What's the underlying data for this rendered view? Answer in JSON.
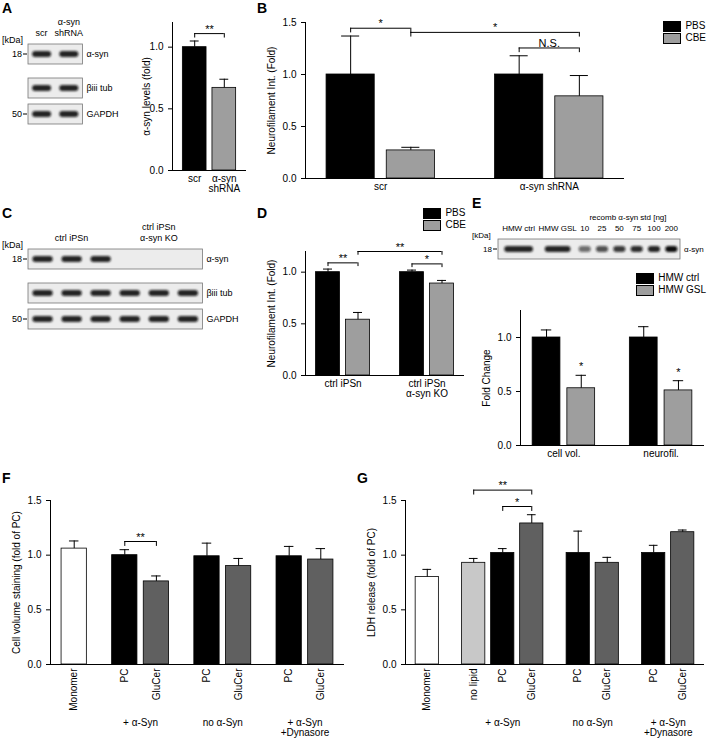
{
  "chart_data": [
    {
      "type": "bar",
      "categories": [
        "scr",
        "α-syn\nshRNA"
      ],
      "values": [
        1.0,
        0.67
      ],
      "errors": [
        0.05,
        0.07
      ],
      "colors": [
        "#000000",
        "#9e9e9e"
      ],
      "ylabel": "α-syn levels (fold)",
      "ylim": [
        0,
        1.2
      ],
      "yticks": [
        {
          "value": 0,
          "label": "0.0"
        },
        0.5,
        {
          "value": 1,
          "label": "1.0"
        }
      ],
      "annotations": [
        {
          "label": "**",
          "from": 0,
          "to": 1
        }
      ]
    },
    {
      "type": "bar",
      "title": "B",
      "categories": [
        "scr",
        "α-syn shRNA"
      ],
      "series": [
        {
          "name": "PBS",
          "color": "#000000",
          "values": [
            1.0,
            1.0
          ],
          "errors": [
            0.37,
            0.18
          ]
        },
        {
          "name": "CBE",
          "color": "#9e9e9e",
          "values": [
            0.27,
            0.79
          ],
          "errors": [
            0.03,
            0.2
          ]
        }
      ],
      "ylabel": "Neurofilament Int. (Fold)",
      "ylim": [
        0,
        1.5
      ],
      "yticks": [
        {
          "value": 0,
          "label": "0.0"
        },
        0.5,
        {
          "value": 1,
          "label": "1.0"
        },
        1.5
      ],
      "legend": "top-right",
      "annotations": [
        {
          "label": "*",
          "from": [
            0,
            0
          ],
          "to": [
            0,
            1
          ]
        },
        {
          "label": "*",
          "from": [
            0,
            1
          ],
          "to": [
            1,
            1
          ]
        },
        {
          "label": "N.S.",
          "from": [
            1,
            0
          ],
          "to": [
            1,
            1
          ]
        }
      ]
    },
    {
      "type": "bar",
      "title": "D",
      "categories": [
        "ctrl iPSn",
        "ctrl iPSn\nα-syn KO"
      ],
      "series": [
        {
          "name": "PBS",
          "color": "#000000",
          "values": [
            1.0,
            1.0
          ],
          "errors": [
            0.03,
            0.02
          ]
        },
        {
          "name": "CBE",
          "color": "#9e9e9e",
          "values": [
            0.54,
            0.89
          ],
          "errors": [
            0.07,
            0.03
          ]
        }
      ],
      "ylabel": "Neurofilament Int. (Fold)",
      "ylim": [
        0,
        1.2
      ],
      "yticks": [
        {
          "value": 0,
          "label": "0.0"
        },
        0.5,
        {
          "value": 1,
          "label": "1.0"
        }
      ],
      "legend": "top-right",
      "annotations": [
        {
          "label": "**",
          "from": [
            0,
            0
          ],
          "to": [
            0,
            1
          ]
        },
        {
          "label": "**",
          "from": [
            0,
            1
          ],
          "to": [
            1,
            1
          ]
        },
        {
          "label": "*",
          "from": [
            1,
            0
          ],
          "to": [
            1,
            1
          ]
        }
      ]
    },
    {
      "type": "bar",
      "categories": [
        "cell vol.",
        "neurofil."
      ],
      "series": [
        {
          "name": "HMW ctrl",
          "color": "#000000",
          "values": [
            1.0,
            1.0
          ],
          "errors": [
            0.07,
            0.1
          ]
        },
        {
          "name": "HMW GSL",
          "color": "#9e9e9e",
          "values": [
            0.53,
            0.51
          ],
          "errors": [
            0.12,
            0.09
          ]
        }
      ],
      "ylabel": "Fold Change",
      "ylim": [
        0,
        1.25
      ],
      "yticks": [
        {
          "value": 0,
          "label": "0.0"
        },
        0.5,
        {
          "value": 1,
          "label": "1.0"
        }
      ],
      "legend": "top-right",
      "annotations": [
        {
          "label": "*",
          "at": [
            0,
            1
          ]
        },
        {
          "label": "*",
          "at": [
            1,
            1
          ]
        }
      ]
    },
    {
      "type": "bar",
      "title": "F",
      "categories": [
        "Monomer",
        "PC",
        "GluCer",
        "PC",
        "GluCer",
        "PC",
        "GluCer"
      ],
      "groups": [
        null,
        "+ α-Syn",
        "+ α-Syn",
        "no α-Syn",
        "no α-Syn",
        "+ α-Syn\n+Dynasore",
        "+ α-Syn\n+Dynasore"
      ],
      "values": [
        1.06,
        1.0,
        0.76,
        0.99,
        0.9,
        0.99,
        0.96
      ],
      "errors": [
        0.07,
        0.05,
        0.05,
        0.12,
        0.07,
        0.09,
        0.1
      ],
      "colors": [
        "#ffffff",
        "#000000",
        "#606060",
        "#000000",
        "#606060",
        "#000000",
        "#606060"
      ],
      "ylabel": "Cell volume staining (fold of PC)",
      "ylim": [
        0,
        1.5
      ],
      "yticks": [
        {
          "value": 0,
          "label": "0.0"
        },
        0.5,
        {
          "value": 1,
          "label": "1.0"
        },
        1.5
      ],
      "annotations": [
        {
          "label": "**",
          "from": 1,
          "to": 2
        }
      ]
    },
    {
      "type": "bar",
      "title": "G",
      "categories": [
        "Monomer",
        "no lipid",
        "PC",
        "GluCer",
        "PC",
        "GluCer",
        "PC",
        "GluCer"
      ],
      "groups": [
        null,
        "+ α-Syn",
        "+ α-Syn",
        "+ α-Syn",
        "no α-Syn",
        "no α-Syn",
        "+ α-Syn\n+Dynasore",
        "+ α-Syn\n+Dynasore"
      ],
      "values": [
        0.8,
        0.93,
        1.02,
        1.29,
        1.02,
        0.93,
        1.02,
        1.21
      ],
      "errors": [
        0.07,
        0.04,
        0.04,
        0.08,
        0.2,
        0.05,
        0.07,
        0.02
      ],
      "colors": [
        "#ffffff",
        "#c8c8c8",
        "#000000",
        "#606060",
        "#000000",
        "#606060",
        "#000000",
        "#606060"
      ],
      "ylabel": "LDH release (fold of PC)",
      "ylim": [
        0,
        1.5
      ],
      "yticks": [
        {
          "value": 0,
          "label": "0.0"
        },
        0.5,
        {
          "value": 1,
          "label": "1.0"
        },
        1.5
      ],
      "annotations": [
        {
          "label": "**",
          "from": 1,
          "to": 3
        },
        {
          "label": "*",
          "from": 2,
          "to": 3
        }
      ]
    }
  ],
  "blots": [
    {
      "title": "A",
      "kda_label": "[kDa]",
      "lane_groups": [
        {
          "label": "scr",
          "n": 1
        },
        {
          "label": "α-syn\nshRNA",
          "n": 1
        }
      ],
      "rows": [
        {
          "label": "α-syn",
          "marker": 18
        },
        {
          "label": "βiii tub"
        },
        {
          "label": "GAPDH",
          "marker": 50
        }
      ]
    },
    {
      "title": "C",
      "kda_label": "[kDa]",
      "lane_groups": [
        {
          "label": "ctrl iPSn",
          "n": 3
        },
        {
          "label": "ctrl iPSn\nα-syn KO",
          "n": 3
        }
      ],
      "rows": [
        {
          "label": "α-syn",
          "marker": 18,
          "absent_in": "ctrl iPSn\nα-syn KO"
        },
        {
          "label": "βiii tub"
        },
        {
          "label": "GAPDH",
          "marker": 50
        }
      ]
    },
    {
      "title": "E",
      "kda_label": "[kDa]",
      "lane_groups": [
        {
          "label": "HMW ctrl",
          "n": 1
        },
        {
          "label": "HMW GSL",
          "n": 1
        },
        {
          "label": "recomb α-syn std [ng]",
          "lanes": [
            10,
            25,
            50,
            75,
            100,
            200
          ]
        }
      ],
      "rows": [
        {
          "label": "α-syn",
          "marker": 18
        }
      ]
    }
  ]
}
